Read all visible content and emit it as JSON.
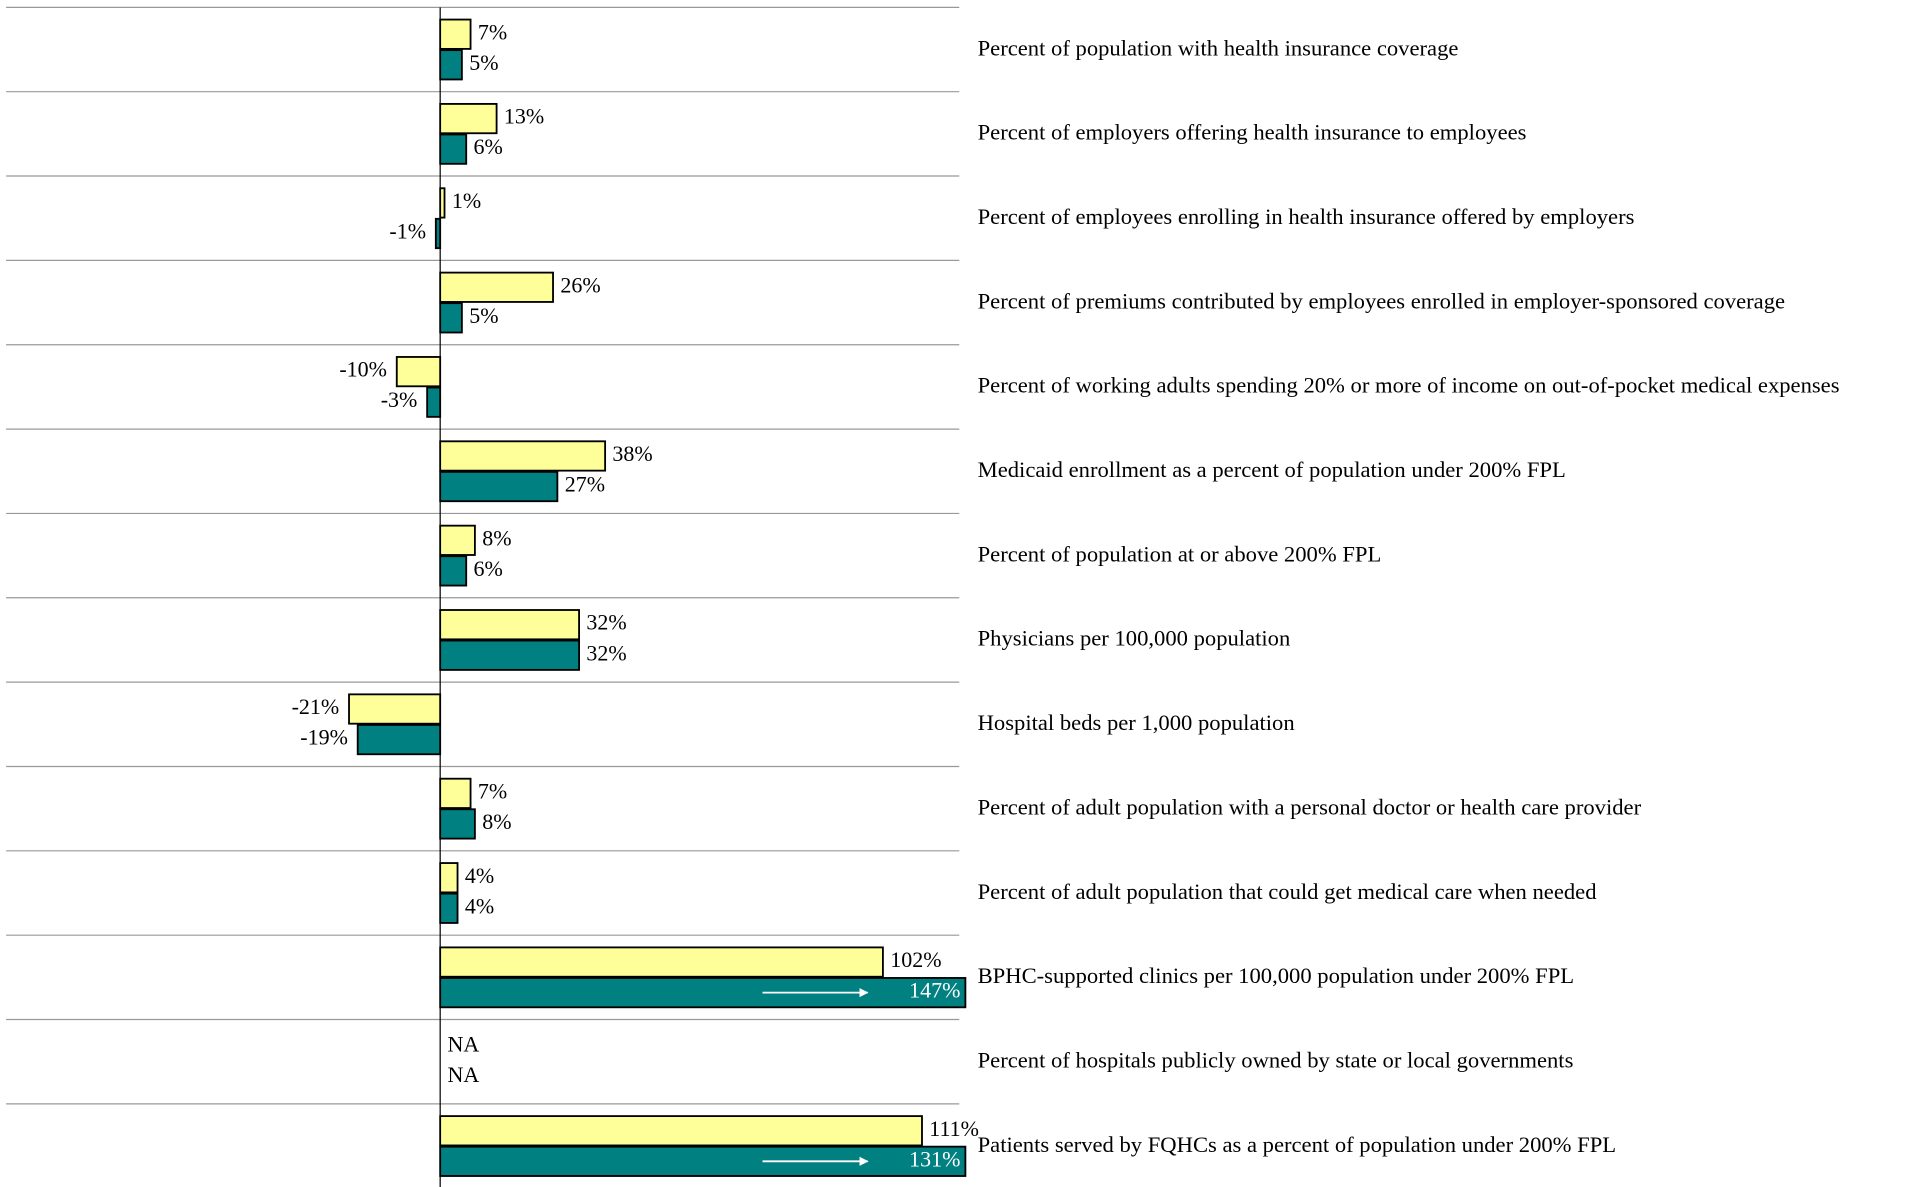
{
  "chart_data": {
    "type": "bar",
    "orientation": "horizontal",
    "categories": [
      "Percent of population with health insurance coverage",
      "Percent of employers offering health insurance to employees",
      "Percent of employees enrolling in health insurance offered by employers",
      "Percent of premiums contributed by employees enrolled in employer-sponsored coverage",
      "Percent of working adults spending 20% or more of income on out-of-pocket medical expenses",
      "Medicaid enrollment as a percent of population under 200% FPL",
      "Percent of population at or above 200% FPL",
      "Physicians per 100,000 population",
      "Hospital beds per 1,000 population",
      "Percent of adult population with a personal doctor or health care provider",
      "Percent of adult population that could get medical care when needed",
      "BPHC-supported clinics per 100,000 population under 200% FPL",
      "Percent of hospitals publicly owned by state or local governments",
      "Patients served by FQHCs as a percent of population under 200% FPL"
    ],
    "series": [
      {
        "color": "#ffff99",
        "values": [
          7,
          13,
          1,
          26,
          -10,
          38,
          8,
          32,
          -21,
          7,
          4,
          102,
          null,
          111
        ],
        "value_labels": [
          "7%",
          "13%",
          "1%",
          "26%",
          "-10%",
          "38%",
          "8%",
          "32%",
          "-21%",
          "7%",
          "4%",
          "102%",
          "NA",
          "111%"
        ]
      },
      {
        "color": "#008080",
        "values": [
          5,
          6,
          -1,
          5,
          -3,
          27,
          6,
          32,
          -19,
          8,
          4,
          147,
          null,
          131
        ],
        "value_labels": [
          "5%",
          "6%",
          "-1%",
          "5%",
          "-3%",
          "27%",
          "6%",
          "32%",
          "-19%",
          "8%",
          "4%",
          "147%",
          "NA",
          "131%"
        ]
      }
    ],
    "xlim": [
      -100,
      121
    ]
  }
}
